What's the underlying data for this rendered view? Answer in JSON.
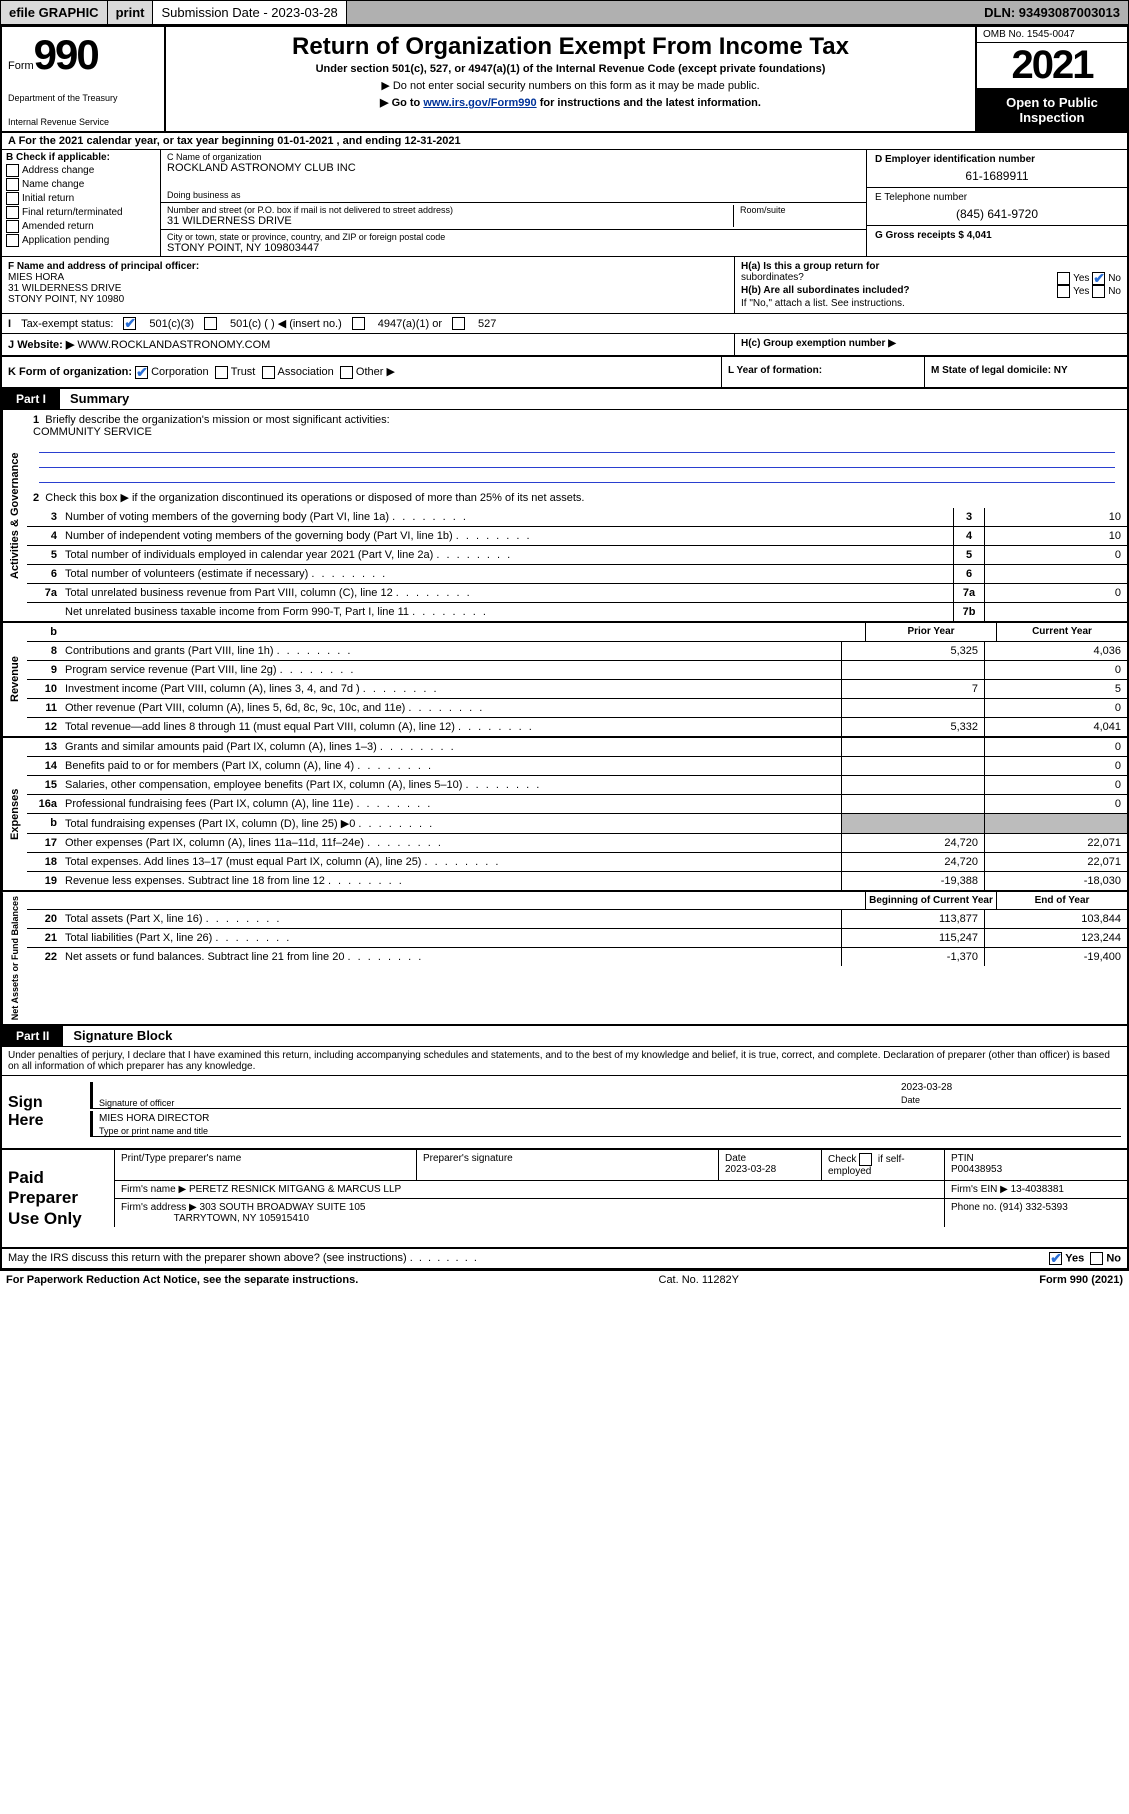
{
  "topbar": {
    "efile": "efile GRAPHIC",
    "print": "print",
    "submission_label": "Submission Date - 2023-03-28",
    "dln": "DLN: 93493087003013"
  },
  "header": {
    "form_word": "Form",
    "form_num": "990",
    "dept1": "Department of the Treasury",
    "dept2": "Internal Revenue Service",
    "title": "Return of Organization Exempt From Income Tax",
    "subtitle": "Under section 501(c), 527, or 4947(a)(1) of the Internal Revenue Code (except private foundations)",
    "note1": "▶ Do not enter social security numbers on this form as it may be made public.",
    "note2_a": "▶ Go to ",
    "note2_link": "www.irs.gov/Form990",
    "note2_b": " for instructions and the latest information.",
    "omb": "OMB No. 1545-0047",
    "year": "2021",
    "open1": "Open to Public",
    "open2": "Inspection"
  },
  "row_a": "A For the 2021 calendar year, or tax year beginning 01-01-2021   , and ending 12-31-2021",
  "entity": {
    "b_label": "B Check if applicable:",
    "checks": [
      "Address change",
      "Name change",
      "Initial return",
      "Final return/terminated",
      "Amended return",
      "Application pending"
    ],
    "c_label": "C Name of organization",
    "c_val": "ROCKLAND ASTRONOMY CLUB INC",
    "dba_label": "Doing business as",
    "dba_val": "",
    "street_label": "Number and street (or P.O. box if mail is not delivered to street address)",
    "room_label": "Room/suite",
    "street_val": "31 WILDERNESS DRIVE",
    "city_label": "City or town, state or province, country, and ZIP or foreign postal code",
    "city_val": "STONY POINT, NY  109803447",
    "d_label": "D Employer identification number",
    "d_val": "61-1689911",
    "e_label": "E Telephone number",
    "e_val": "(845) 641-9720",
    "g_label": "G Gross receipts $ ",
    "g_val": "4,041"
  },
  "f": {
    "label": "F Name and address of principal officer:",
    "name": "MIES HORA",
    "addr1": "31 WILDERNESS DRIVE",
    "addr2": "STONY POINT, NY  10980",
    "ha": "H(a)  Is this a group return for",
    "ha2": "subordinates?",
    "hb": "H(b)  Are all subordinates included?",
    "hb2": "If \"No,\" attach a list. See instructions.",
    "yn_yes": "Yes",
    "yn_no": "No"
  },
  "status": {
    "i": "I",
    "label": "Tax-exempt status:",
    "o1": "501(c)(3)",
    "o2": "501(c) (  ) ◀ (insert no.)",
    "o3": "4947(a)(1) or",
    "o4": "527"
  },
  "website": {
    "j": "J",
    "label": "Website: ▶",
    "val": "WWW.ROCKLANDASTRONOMY.COM",
    "hc": "H(c)  Group exemption number ▶"
  },
  "k": {
    "label": "K Form of organization:",
    "corp": "Corporation",
    "trust": "Trust",
    "assoc": "Association",
    "other": "Other ▶",
    "l": "L Year of formation:",
    "m": "M State of legal domicile: NY"
  },
  "part1": {
    "tab": "Part I",
    "title": "Summary",
    "q1": "Briefly describe the organization's mission or most significant activities:",
    "q1v": "COMMUNITY SERVICE",
    "q2": "Check this box ▶        if the organization discontinued its operations or disposed of more than 25% of its net assets.",
    "lines_gov": [
      {
        "n": "3",
        "t": "Number of voting members of the governing body (Part VI, line 1a)",
        "c": "3",
        "v": "10"
      },
      {
        "n": "4",
        "t": "Number of independent voting members of the governing body (Part VI, line 1b)",
        "c": "4",
        "v": "10"
      },
      {
        "n": "5",
        "t": "Total number of individuals employed in calendar year 2021 (Part V, line 2a)",
        "c": "5",
        "v": "0"
      },
      {
        "n": "6",
        "t": "Total number of volunteers (estimate if necessary)",
        "c": "6",
        "v": ""
      },
      {
        "n": "7a",
        "t": "Total unrelated business revenue from Part VIII, column (C), line 12",
        "c": "7a",
        "v": "0"
      },
      {
        "n": "",
        "t": "Net unrelated business taxable income from Form 990-T, Part I, line 11",
        "c": "7b",
        "v": ""
      }
    ],
    "hdr_prior": "Prior Year",
    "hdr_curr": "Current Year",
    "lines_rev": [
      {
        "n": "8",
        "t": "Contributions and grants (Part VIII, line 1h)",
        "p": "5,325",
        "c": "4,036"
      },
      {
        "n": "9",
        "t": "Program service revenue (Part VIII, line 2g)",
        "p": "",
        "c": "0"
      },
      {
        "n": "10",
        "t": "Investment income (Part VIII, column (A), lines 3, 4, and 7d )",
        "p": "7",
        "c": "5"
      },
      {
        "n": "11",
        "t": "Other revenue (Part VIII, column (A), lines 5, 6d, 8c, 9c, 10c, and 11e)",
        "p": "",
        "c": "0"
      },
      {
        "n": "12",
        "t": "Total revenue—add lines 8 through 11 (must equal Part VIII, column (A), line 12)",
        "p": "5,332",
        "c": "4,041"
      }
    ],
    "lines_exp": [
      {
        "n": "13",
        "t": "Grants and similar amounts paid (Part IX, column (A), lines 1–3)",
        "p": "",
        "c": "0"
      },
      {
        "n": "14",
        "t": "Benefits paid to or for members (Part IX, column (A), line 4)",
        "p": "",
        "c": "0"
      },
      {
        "n": "15",
        "t": "Salaries, other compensation, employee benefits (Part IX, column (A), lines 5–10)",
        "p": "",
        "c": "0"
      },
      {
        "n": "16a",
        "t": "Professional fundraising fees (Part IX, column (A), line 11e)",
        "p": "",
        "c": "0"
      },
      {
        "n": "b",
        "t": "Total fundraising expenses (Part IX, column (D), line 25) ▶0",
        "p": "grey",
        "c": "grey"
      },
      {
        "n": "17",
        "t": "Other expenses (Part IX, column (A), lines 11a–11d, 11f–24e)",
        "p": "24,720",
        "c": "22,071"
      },
      {
        "n": "18",
        "t": "Total expenses. Add lines 13–17 (must equal Part IX, column (A), line 25)",
        "p": "24,720",
        "c": "22,071"
      },
      {
        "n": "19",
        "t": "Revenue less expenses. Subtract line 18 from line 12",
        "p": "-19,388",
        "c": "-18,030"
      }
    ],
    "hdr_beg": "Beginning of Current Year",
    "hdr_end": "End of Year",
    "lines_net": [
      {
        "n": "20",
        "t": "Total assets (Part X, line 16)",
        "p": "113,877",
        "c": "103,844"
      },
      {
        "n": "21",
        "t": "Total liabilities (Part X, line 26)",
        "p": "115,247",
        "c": "123,244"
      },
      {
        "n": "22",
        "t": "Net assets or fund balances. Subtract line 21 from line 20",
        "p": "-1,370",
        "c": "-19,400"
      }
    ],
    "vlabels": {
      "gov": "Activities & Governance",
      "rev": "Revenue",
      "exp": "Expenses",
      "net": "Net Assets or Fund Balances"
    }
  },
  "part2": {
    "tab": "Part II",
    "title": "Signature Block",
    "note": "Under penalties of perjury, I declare that I have examined this return, including accompanying schedules and statements, and to the best of my knowledge and belief, it is true, correct, and complete. Declaration of preparer (other than officer) is based on all information of which preparer has any knowledge.",
    "sign_here": "Sign Here",
    "sig_of": "Signature of officer",
    "date": "2023-03-28",
    "name_title": "MIES HORA  DIRECTOR",
    "type_label": "Type or print name and title",
    "date_label": "Date"
  },
  "paid": {
    "label": "Paid Preparer Use Only",
    "h1": "Print/Type preparer's name",
    "h2": "Preparer's signature",
    "h3": "Date",
    "h3v": "2023-03-28",
    "h4a": "Check",
    "h4b": "if self-employed",
    "h5": "PTIN",
    "h5v": "P00438953",
    "firm_name_l": "Firm's name    ▶",
    "firm_name": "PERETZ RESNICK MITGANG & MARCUS LLP",
    "firm_ein_l": "Firm's EIN ▶",
    "firm_ein": "13-4038381",
    "firm_addr_l": "Firm's address ▶",
    "firm_addr1": "303 SOUTH BROADWAY SUITE 105",
    "firm_addr2": "TARRYTOWN, NY  105915410",
    "phone_l": "Phone no.",
    "phone": "(914) 332-5393"
  },
  "discuss": {
    "q": "May the IRS discuss this return with the preparer shown above? (see instructions)",
    "yes": "Yes",
    "no": "No"
  },
  "footer": {
    "l": "For Paperwork Reduction Act Notice, see the separate instructions.",
    "m": "Cat. No. 11282Y",
    "r": "Form 990 (2021)"
  }
}
